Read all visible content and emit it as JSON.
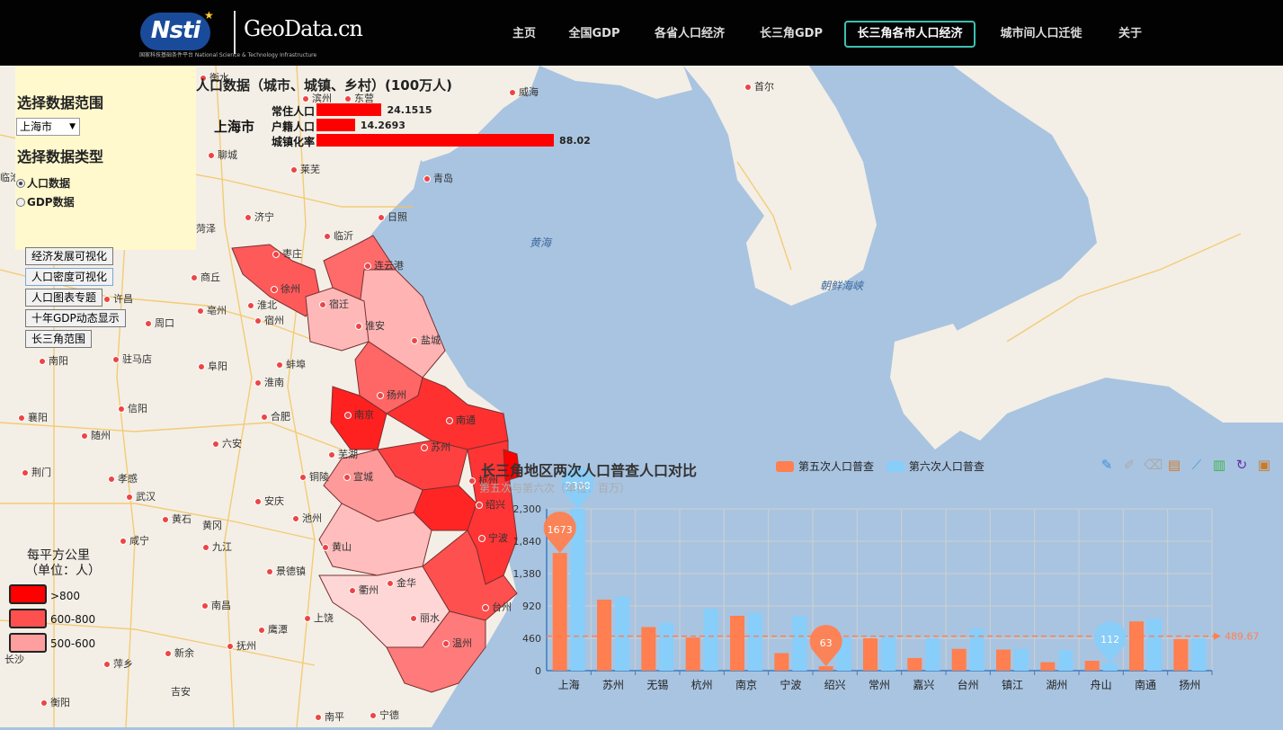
{
  "header": {
    "logo_text": "Nsti",
    "logo_subtitle": "国家科技基础条件平台 National Science & Technology Infrastructure",
    "brand": "GeoData.cn",
    "nav": [
      {
        "label": "主页",
        "active": false
      },
      {
        "label": "全国GDP",
        "active": false
      },
      {
        "label": "各省人口经济",
        "active": false
      },
      {
        "label": "长三角GDP",
        "active": false
      },
      {
        "label": "长三角各市人口经济",
        "active": true
      },
      {
        "label": "城市间人口迁徙",
        "active": false
      },
      {
        "label": "关于",
        "active": false
      }
    ]
  },
  "panel": {
    "range_title": "选择数据范围",
    "range_value": "上海市",
    "type_title": "选择数据类型",
    "radio_population": "人口数据",
    "radio_gdp": "GDP数据",
    "buttons": [
      "经济发展可视化",
      "人口密度可视化",
      "人口图表专题",
      "十年GDP动态显示",
      "长三角范围"
    ]
  },
  "legend": {
    "title_line1": "每平方公里",
    "title_line2": "（单位：人）",
    "items": [
      {
        "label": ">800",
        "color": "#ff0000"
      },
      {
        "label": "600-800",
        "color": "#ff5050"
      },
      {
        "label": "500-600",
        "color": "#ff9e9e"
      }
    ]
  },
  "population": {
    "title": "人口数据（城市、城镇、乡村）(100万人)",
    "city": "上海市",
    "rows": [
      {
        "label": "常住人口",
        "value": 24.1515
      },
      {
        "label": "户籍人口",
        "value": 14.2693
      },
      {
        "label": "城镇化率",
        "value": 88.02
      }
    ]
  },
  "map_labels": {
    "cities": [
      "衡水",
      "滨州",
      "东营",
      "威海",
      "首尔",
      "聊城",
      "莱芜",
      "青岛",
      "济宁",
      "日照",
      "菏泽",
      "临沂",
      "枣庄",
      "商丘",
      "徐州",
      "连云港",
      "淮北",
      "宿迁",
      "亳州",
      "宿州",
      "淮安",
      "盐城",
      "周口",
      "蚌埠",
      "阜阳",
      "淮南",
      "南京",
      "合肥",
      "扬州",
      "南通",
      "苏州",
      "驻马店",
      "南阳",
      "信阳",
      "襄阳",
      "随州",
      "六安",
      "荆门",
      "孝感",
      "武汉",
      "芜湖",
      "宣城",
      "铜陵",
      "黄石",
      "安庆",
      "池州",
      "咸宁",
      "九江",
      "黄山",
      "杭州",
      "绍兴",
      "宁波",
      "景德镇",
      "衢州",
      "金华",
      "台州",
      "南昌",
      "上饶",
      "丽水",
      "温州",
      "鹰潭",
      "抚州",
      "吉安",
      "新余",
      "萍乡",
      "衡阳",
      "宁德",
      "南平",
      "许昌",
      "黄冈",
      "临沧",
      "长沙"
    ],
    "seas": [
      "黄海",
      "朝鲜海峡"
    ]
  },
  "chart_data": {
    "type": "bar",
    "title": "长三角地区两次人口普查人口对比",
    "subtitle": "第五次与第六次（单位：百万）",
    "categories": [
      "上海",
      "苏州",
      "无锡",
      "杭州",
      "南京",
      "宁波",
      "绍兴",
      "常州",
      "嘉兴",
      "台州",
      "镇江",
      "湖州",
      "舟山",
      "南通",
      "扬州"
    ],
    "series": [
      {
        "name": "第五次人口普查",
        "color": "#ff7f50",
        "values": [
          1673,
          1010,
          620,
          470,
          780,
          250,
          63,
          460,
          180,
          310,
          300,
          120,
          140,
          700,
          450
        ]
      },
      {
        "name": "第六次人口普查",
        "color": "#87cefa",
        "values": [
          2300,
          1050,
          680,
          880,
          820,
          780,
          470,
          490,
          460,
          600,
          310,
          290,
          112,
          740,
          460
        ]
      }
    ],
    "yticks": [
      0,
      460,
      920,
      1380,
      1840,
      2300
    ],
    "ylim": [
      0,
      2300
    ],
    "markpoints": [
      {
        "label": "1673"
      },
      {
        "label": "2300"
      },
      {
        "label": "63"
      },
      {
        "label": "112"
      }
    ],
    "markline": {
      "label": "489.67",
      "value": 489.67
    }
  }
}
